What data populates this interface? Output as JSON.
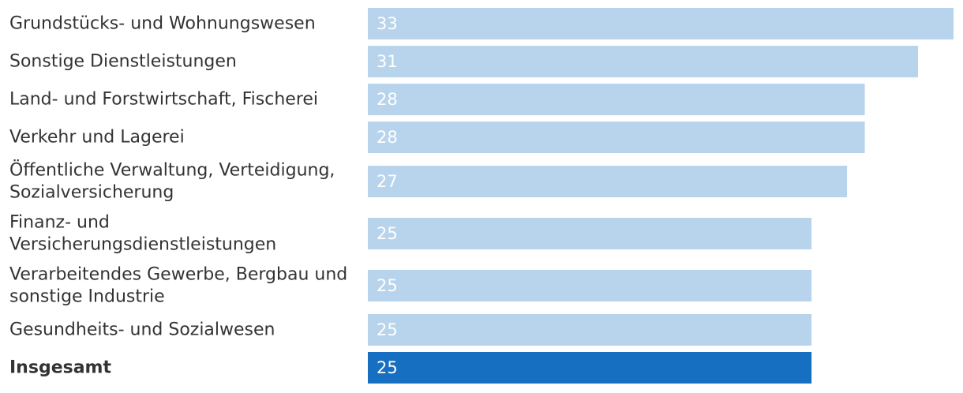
{
  "chart_data": {
    "type": "bar",
    "orientation": "horizontal",
    "title": "",
    "xlabel": "",
    "ylabel": "",
    "xlim": [
      0,
      33
    ],
    "grid": false,
    "categories": [
      "Grundstücks- und Wohnungswesen",
      "Sonstige Dienstleistungen",
      "Land- und Forstwirtschaft, Fischerei",
      "Verkehr und Lagerei",
      "Öffentliche Verwaltung, Verteidigung, Sozialversicherung",
      "Finanz- und Versicherungsdienstleistungen",
      "Verarbeitendes Gewerbe, Bergbau und sonstige Industrie",
      "Gesundheits- und Sozialwesen",
      "Insgesamt"
    ],
    "category_lines": [
      [
        "Grundstücks- und Wohnungswesen"
      ],
      [
        "Sonstige Dienstleistungen"
      ],
      [
        "Land- und Forstwirtschaft, Fischerei"
      ],
      [
        "Verkehr und Lagerei"
      ],
      [
        "Öffentliche Verwaltung, Verteidigung,",
        "Sozialversicherung"
      ],
      [
        "Finanz- und",
        "Versicherungsdienstleistungen"
      ],
      [
        "Verarbeitendes Gewerbe, Bergbau und",
        "sonstige Industrie"
      ],
      [
        "Gesundheits- und Sozialwesen"
      ],
      [
        "Insgesamt"
      ]
    ],
    "values": [
      33,
      31,
      28,
      28,
      27,
      25,
      25,
      25,
      25
    ],
    "value_labels": [
      "33",
      "31",
      "28",
      "28",
      "27",
      "25",
      "25",
      "25",
      "25"
    ],
    "highlight_index": 8,
    "colors": {
      "bar": "#b8d4ec",
      "bar_highlight": "#176fc1",
      "value_text": "#ffffff",
      "label_text": "#333333"
    }
  }
}
